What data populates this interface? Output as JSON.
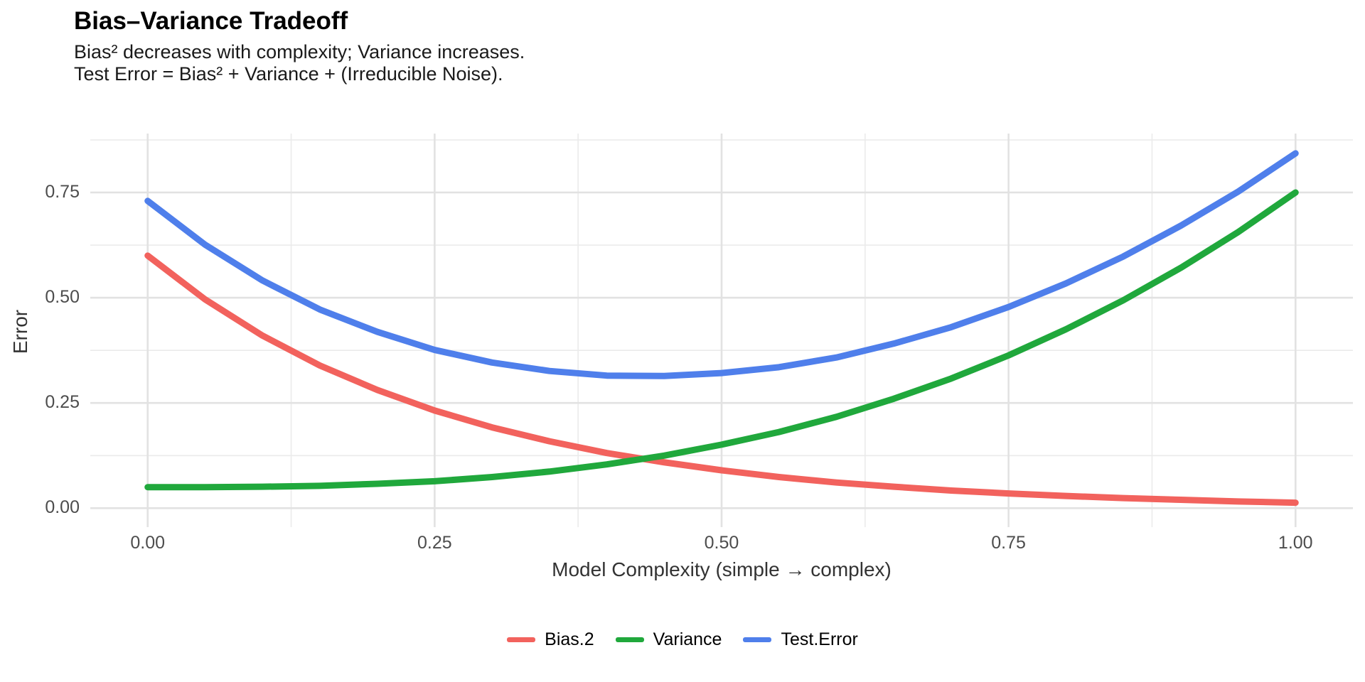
{
  "title": "Bias–Variance Tradeoff",
  "subtitle": {
    "line1": "Bias² decreases with complexity; Variance increases.",
    "line2": "Test Error = Bias² + Variance + (Irreducible Noise)."
  },
  "colors": {
    "bias2": "#F2625D",
    "variance": "#20A83C",
    "test_error": "#4F7FEB",
    "grid_major": "#E2E2E2",
    "grid_minor": "#EBEBEB",
    "tick_text": "#4d4d4d",
    "axis_title_text": "#333333"
  },
  "chart_data": {
    "type": "line",
    "title": "Bias–Variance Tradeoff",
    "subtitle": "Bias² decreases with complexity; Variance increases. Test Error = Bias² + Variance + (Irreducible Noise).",
    "xlabel": "Model Complexity (simple → complex)",
    "ylabel": "Error",
    "xlim": [
      -0.05,
      1.05
    ],
    "ylim": [
      -0.045,
      0.89
    ],
    "grid": true,
    "legend_position": "bottom",
    "x_tick_values": [
      0,
      0.25,
      0.5,
      0.75,
      1.0
    ],
    "x_tick_labels": [
      "0.00",
      "0.25",
      "0.50",
      "0.75",
      "1.00"
    ],
    "x_minor_ticks": [
      0.125,
      0.375,
      0.625,
      0.875
    ],
    "y_tick_values": [
      0,
      0.25,
      0.5,
      0.75
    ],
    "y_tick_labels": [
      "0.00",
      "0.25",
      "0.50",
      "0.75"
    ],
    "y_minor_ticks": [
      0.125,
      0.375,
      0.625,
      0.875
    ],
    "x": [
      0,
      0.05,
      0.1,
      0.15,
      0.2,
      0.25,
      0.3,
      0.35,
      0.4,
      0.45,
      0.5,
      0.55,
      0.6,
      0.65,
      0.7,
      0.75,
      0.8,
      0.85,
      0.9,
      0.95,
      1.0
    ],
    "series": [
      {
        "name": "Bias.2",
        "color": "#F2625D",
        "values": [
          0.6,
          0.496,
          0.41,
          0.339,
          0.281,
          0.232,
          0.192,
          0.159,
          0.131,
          0.109,
          0.09,
          0.074,
          0.061,
          0.051,
          0.042,
          0.035,
          0.029,
          0.024,
          0.02,
          0.016,
          0.013
        ]
      },
      {
        "name": "Variance",
        "color": "#20A83C",
        "values": [
          0.05,
          0.05,
          0.051,
          0.053,
          0.058,
          0.064,
          0.074,
          0.087,
          0.104,
          0.125,
          0.151,
          0.181,
          0.217,
          0.26,
          0.308,
          0.363,
          0.425,
          0.494,
          0.571,
          0.656,
          0.75
        ]
      },
      {
        "name": "Test.Error",
        "color": "#4F7FEB",
        "values": [
          0.73,
          0.626,
          0.541,
          0.472,
          0.419,
          0.376,
          0.346,
          0.326,
          0.315,
          0.314,
          0.321,
          0.335,
          0.358,
          0.391,
          0.43,
          0.478,
          0.534,
          0.598,
          0.671,
          0.752,
          0.843
        ]
      }
    ]
  },
  "legend": {
    "items": [
      {
        "label": "Bias.2",
        "color": "#F2625D"
      },
      {
        "label": "Variance",
        "color": "#20A83C"
      },
      {
        "label": "Test.Error",
        "color": "#4F7FEB"
      }
    ]
  }
}
